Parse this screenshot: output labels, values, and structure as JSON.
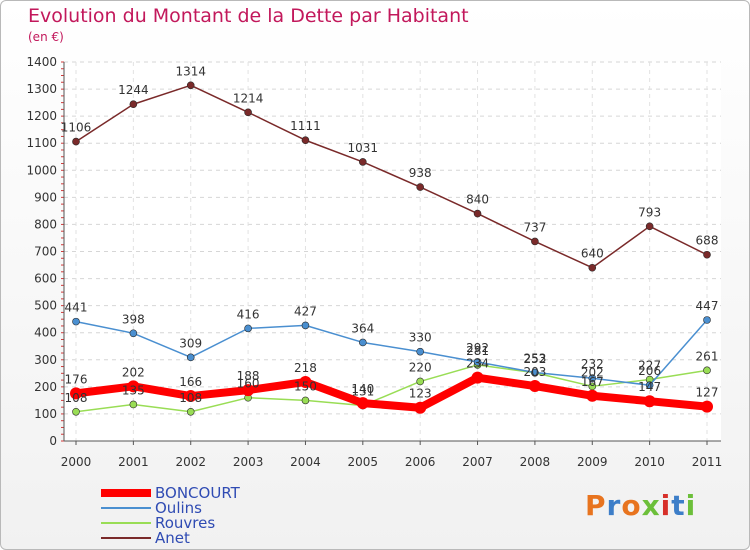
{
  "chart_data": {
    "type": "line",
    "title": "Evolution du Montant de la Dette par Habitant",
    "subtitle": "(en €)",
    "categories": [
      "2000",
      "2001",
      "2002",
      "2003",
      "2004",
      "2005",
      "2006",
      "2007",
      "2008",
      "2009",
      "2010",
      "2011"
    ],
    "ylim": [
      0,
      1400
    ],
    "yticks": [
      0,
      100,
      200,
      300,
      400,
      500,
      600,
      700,
      800,
      900,
      1000,
      1100,
      1200,
      1300,
      1400
    ],
    "grid": true,
    "legend_position": "bottom-left",
    "series": [
      {
        "name": "BONCOURT",
        "color": "#ff0000",
        "values": [
          176,
          202,
          166,
          188,
          218,
          140,
          123,
          234,
          203,
          167,
          147,
          127
        ]
      },
      {
        "name": "Oulins",
        "color": "#4a8fd0",
        "values": [
          441,
          398,
          309,
          416,
          427,
          364,
          330,
          292,
          253,
          232,
          206,
          447
        ]
      },
      {
        "name": "Rouvres",
        "color": "#99dd55",
        "values": [
          108,
          135,
          108,
          160,
          150,
          131,
          220,
          281,
          252,
          202,
          227,
          261
        ]
      },
      {
        "name": "Anet",
        "color": "#7a2a2a",
        "values": [
          1106,
          1244,
          1314,
          1214,
          1111,
          1031,
          938,
          840,
          737,
          640,
          793,
          688
        ]
      }
    ]
  },
  "logo_text": "Proxiti",
  "logo_colors": [
    "#e8741f",
    "#3d7ec8",
    "#e8741f",
    "#6cbf3a",
    "#d7302a",
    "#3d7ec8",
    "#6cbf3a"
  ]
}
